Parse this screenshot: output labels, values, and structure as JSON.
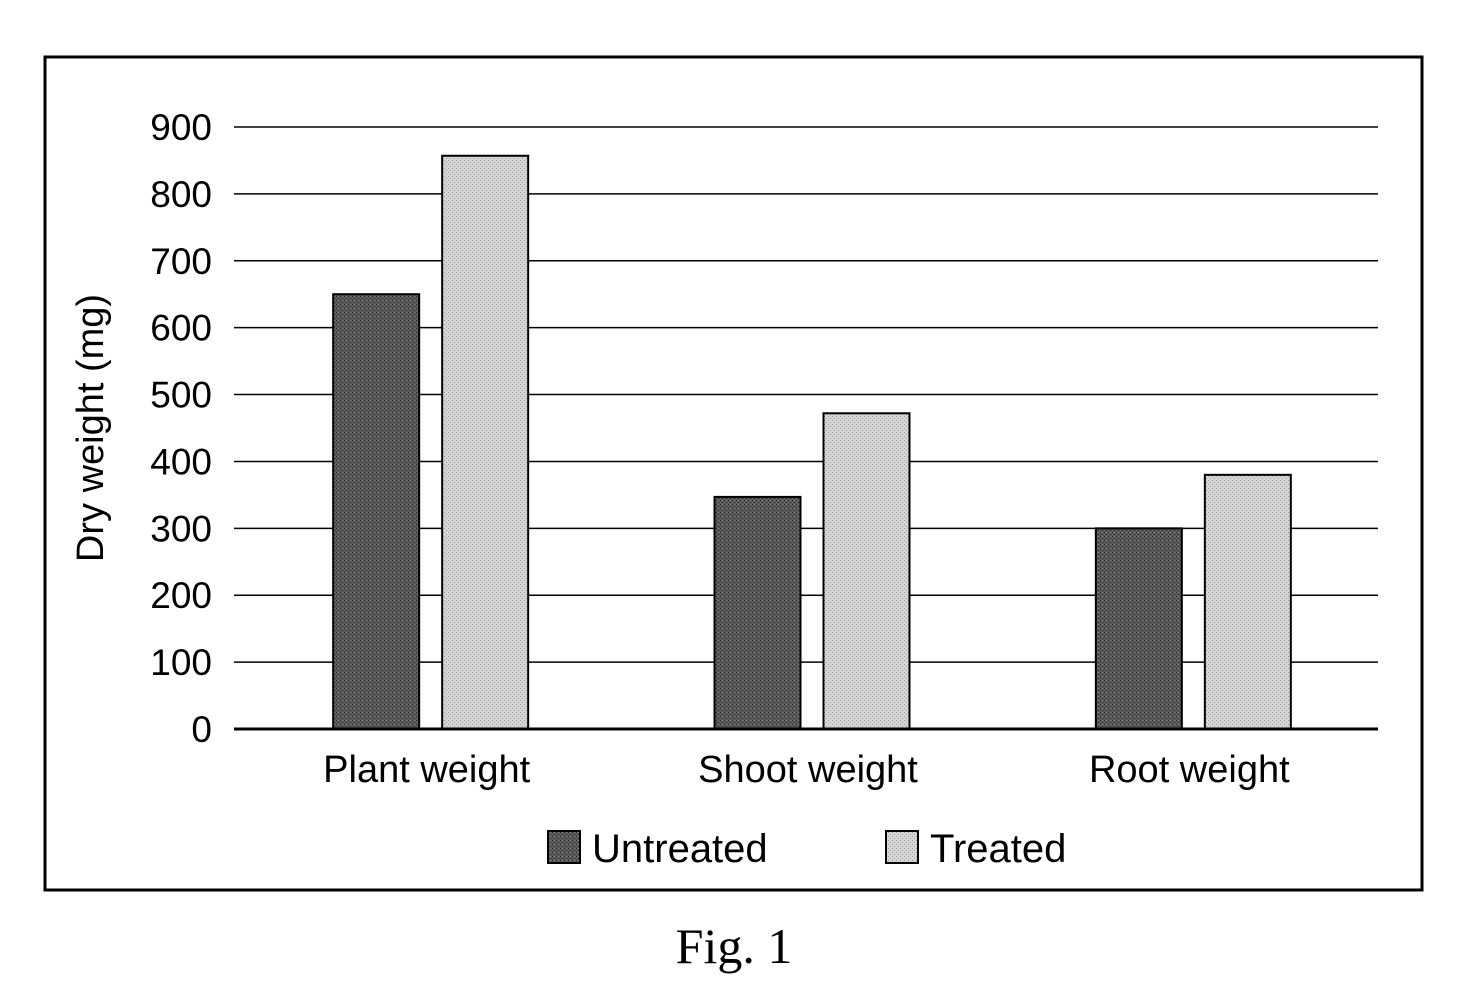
{
  "chart_data": {
    "type": "bar",
    "categories": [
      "Plant weight",
      "Shoot weight",
      "Root weight"
    ],
    "series": [
      {
        "name": "Untreated",
        "values": [
          650,
          347,
          300
        ]
      },
      {
        "name": "Treated",
        "values": [
          857,
          472,
          380
        ]
      }
    ],
    "title": "",
    "xlabel": "",
    "ylabel": "Dry weight (mg)",
    "ylim": [
      0,
      900
    ],
    "yticks": [
      0,
      100,
      200,
      300,
      400,
      500,
      600,
      700,
      800,
      900
    ],
    "grid": true,
    "legend_position": "bottom"
  },
  "caption": "Fig. 1",
  "colors": {
    "untreated": "#4a4a4a",
    "treated": "#c8c8c8",
    "frame": "#000000",
    "grid": "#000000"
  }
}
